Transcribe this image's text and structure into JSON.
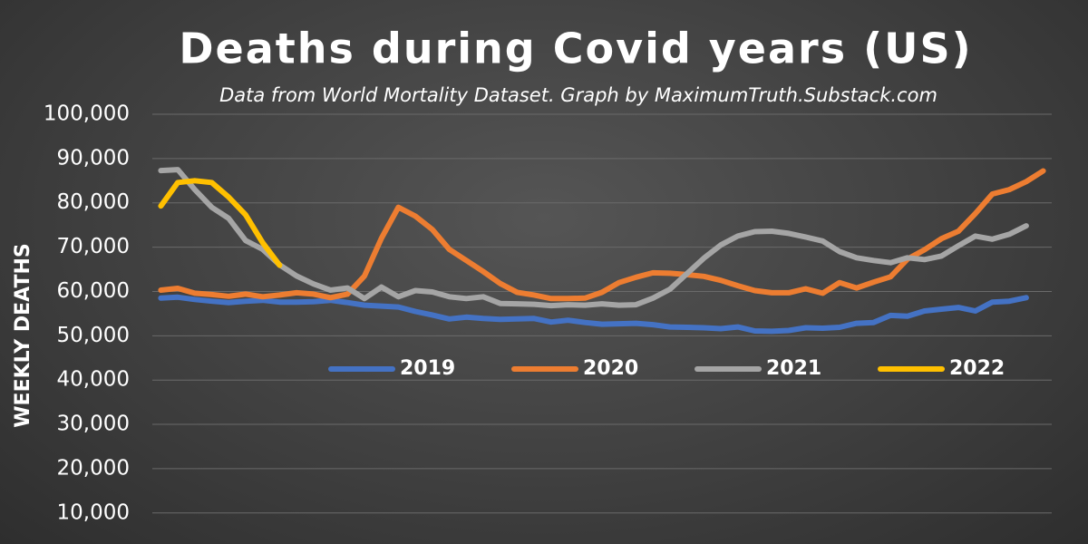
{
  "chart_data": {
    "type": "line",
    "title": "Deaths during Covid years (US)",
    "subtitle": "Data from World Mortality Dataset. Graph by MaximumTruth.Substack.com",
    "y_axis_label": "WEEKLY DEATHS",
    "ylim": [
      3000,
      100000
    ],
    "yticks": [
      {
        "value": 10000,
        "label": "10,000"
      },
      {
        "value": 20000,
        "label": "20,000"
      },
      {
        "value": 30000,
        "label": "30,000"
      },
      {
        "value": 40000,
        "label": "40,000"
      },
      {
        "value": 50000,
        "label": "50,000"
      },
      {
        "value": 60000,
        "label": "60,000"
      },
      {
        "value": 70000,
        "label": "70,000"
      },
      {
        "value": 80000,
        "label": "80,000"
      },
      {
        "value": 90000,
        "label": "90,000"
      },
      {
        "value": 100000,
        "label": "100,000"
      }
    ],
    "grid": true,
    "legend": "center",
    "series": [
      {
        "name": "2019",
        "color": "#4472c4",
        "values": [
          58500,
          58700,
          58200,
          57800,
          57500,
          57800,
          58000,
          57600,
          57600,
          57700,
          58000,
          57500,
          56900,
          56700,
          56500,
          55500,
          54700,
          53800,
          54200,
          53900,
          53700,
          53800,
          53900,
          53100,
          53500,
          53000,
          52600,
          52700,
          52800,
          52500,
          52000,
          51900,
          51800,
          51600,
          52000,
          51100,
          51000,
          51200,
          51800,
          51700,
          51900,
          52800,
          53000,
          54600,
          54400,
          55600,
          56000,
          56400,
          55600,
          57600,
          57800,
          58600
        ]
      },
      {
        "name": "2020",
        "color": "#ed7d31",
        "values": [
          60300,
          60700,
          59600,
          59300,
          58900,
          59400,
          58800,
          59200,
          59700,
          59400,
          58600,
          59400,
          63500,
          72000,
          79000,
          77000,
          74000,
          69500,
          67000,
          64500,
          61800,
          59800,
          59200,
          58400,
          58400,
          58500,
          59800,
          62000,
          63200,
          64200,
          64100,
          63800,
          63400,
          62500,
          61300,
          60200,
          59700,
          59700,
          60600,
          59600,
          62000,
          60800,
          62100,
          63300,
          67300,
          69400,
          71900,
          73600,
          77600,
          82000,
          83000,
          84800,
          87200
        ]
      },
      {
        "name": "2021",
        "color": "#a5a5a5",
        "values": [
          87300,
          87500,
          83000,
          79000,
          76500,
          71500,
          69500,
          66000,
          63500,
          61700,
          60300,
          60800,
          58400,
          61000,
          58800,
          60200,
          59900,
          58800,
          58400,
          58800,
          57300,
          57200,
          57100,
          56800,
          57000,
          56900,
          57200,
          56900,
          57000,
          58500,
          60500,
          64000,
          67500,
          70500,
          72500,
          73500,
          73600,
          73100,
          72300,
          71400,
          69000,
          67600,
          67000,
          66500,
          67600,
          67200,
          68000,
          70300,
          72500,
          71800,
          72900,
          74800
        ]
      },
      {
        "name": "2022",
        "color": "#ffc000",
        "values": [
          79300,
          84600,
          85000,
          84600,
          81300,
          77300,
          71000,
          65900
        ]
      }
    ]
  }
}
